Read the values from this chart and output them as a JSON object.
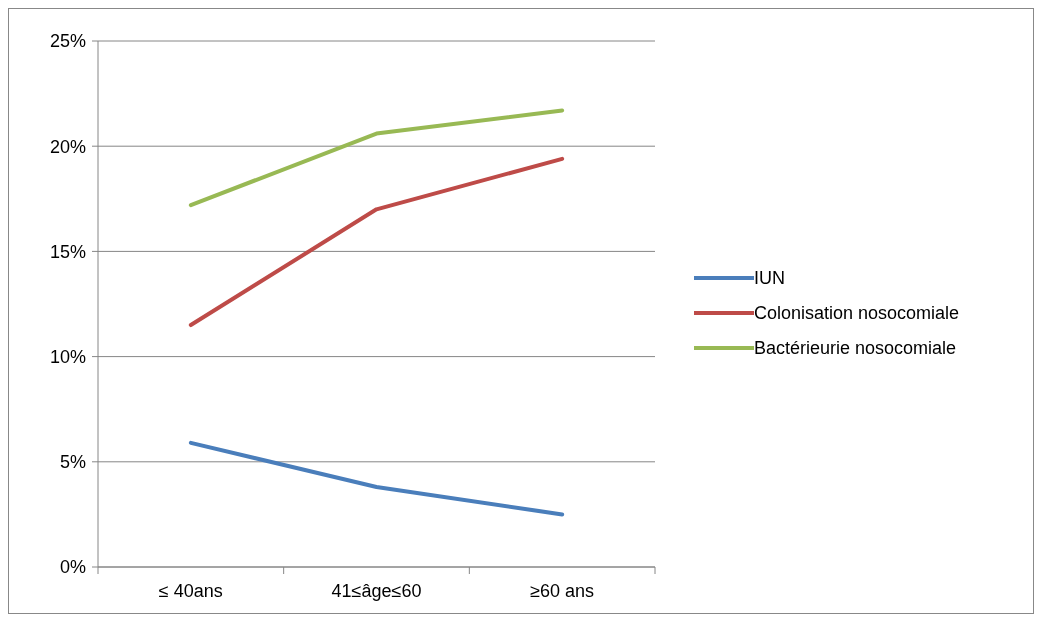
{
  "chart_data": {
    "type": "line",
    "categories": [
      "≤ 40ans",
      "41≤âge≤60",
      "≥60 ans"
    ],
    "series": [
      {
        "name": "IUN",
        "color": "#4a7ebb",
        "values": [
          5.9,
          3.8,
          2.5
        ]
      },
      {
        "name": "Colonisation nosocomiale",
        "color": "#be4b48",
        "values": [
          11.5,
          17.0,
          19.4
        ]
      },
      {
        "name": "Bactérieurie nosocomiale",
        "color": "#98b954",
        "values": [
          17.2,
          20.6,
          21.7
        ]
      }
    ],
    "ylim": [
      0,
      25
    ],
    "yticks": [
      {
        "value": 0,
        "label": "0%"
      },
      {
        "value": 5,
        "label": "5%"
      },
      {
        "value": 10,
        "label": "10%"
      },
      {
        "value": 15,
        "label": "15%"
      },
      {
        "value": 20,
        "label": "20%"
      },
      {
        "value": 25,
        "label": "25%"
      }
    ],
    "grid": "y",
    "legend": "right",
    "marker": "none",
    "line_style": "solid"
  }
}
